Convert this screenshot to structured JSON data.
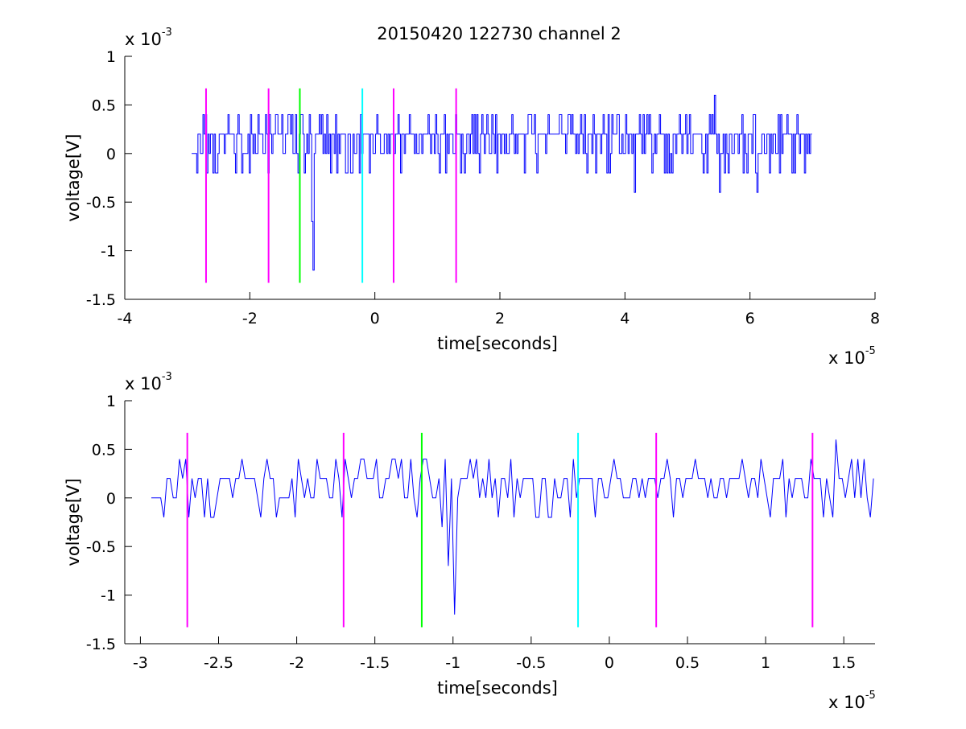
{
  "figure": {
    "title": "20150420 122730 channel 2"
  },
  "chart_data": [
    {
      "type": "line",
      "title": "20150420 122730 channel 2",
      "xlabel": "time[seconds]",
      "ylabel": "voltage[V]",
      "x_exponent": {
        "base": "x 10",
        "power": "-5"
      },
      "y_exponent": {
        "base": "x 10",
        "power": "-3"
      },
      "xlim": [
        -4,
        8
      ],
      "ylim": [
        -1.5,
        1
      ],
      "xticks": [
        -4,
        -2,
        0,
        2,
        4,
        6,
        8
      ],
      "xtick_labels": [
        "-4",
        "-2",
        "0",
        "2",
        "4",
        "6",
        "8"
      ],
      "yticks": [
        -1.5,
        -1,
        -0.5,
        0,
        0.5,
        1
      ],
      "ytick_labels": [
        "-1.5",
        "-1",
        "-0.5",
        "0",
        "0.5",
        "1"
      ],
      "grid": false,
      "signal": {
        "color": "#0000ff",
        "x_range": [
          -2.93,
          7.0
        ],
        "levels": [
          -0.2,
          0,
          0.2,
          0.4
        ],
        "dips": [
          [
            -0.98,
            -1.2
          ],
          [
            -1.0,
            -0.7
          ],
          [
            -1.12,
            -0.2
          ],
          [
            4.15,
            -0.4
          ],
          [
            5.5,
            -0.4
          ],
          [
            6.1,
            -0.4
          ]
        ],
        "peaks": [
          [
            5.42,
            0.6
          ]
        ]
      },
      "markers": [
        {
          "x": -2.7,
          "color": "#ff00ff"
        },
        {
          "x": -1.7,
          "color": "#ff00ff"
        },
        {
          "x": -1.2,
          "color": "#00ff00"
        },
        {
          "x": -0.2,
          "color": "#00ffff"
        },
        {
          "x": 0.3,
          "color": "#ff00ff"
        },
        {
          "x": 1.3,
          "color": "#ff00ff"
        }
      ],
      "marker_range": [
        -1.33,
        0.67
      ]
    },
    {
      "type": "line",
      "xlabel": "time[seconds]",
      "ylabel": "voltage[V]",
      "x_exponent": {
        "base": "x 10",
        "power": "-5"
      },
      "y_exponent": {
        "base": "x 10",
        "power": "-3"
      },
      "xlim": [
        -3.1,
        1.7
      ],
      "ylim": [
        -1.5,
        1
      ],
      "xticks": [
        -3,
        -2.5,
        -2,
        -1.5,
        -1,
        -0.5,
        0,
        0.5,
        1,
        1.5
      ],
      "xtick_labels": [
        "-3",
        "-2.5",
        "-2",
        "-1.5",
        "-1",
        "-0.5",
        "0",
        "0.5",
        "1",
        "1.5"
      ],
      "yticks": [
        -1.5,
        -1,
        -0.5,
        0,
        0.5,
        1
      ],
      "ytick_labels": [
        "-1.5",
        "-1",
        "-0.5",
        "0",
        "0.5",
        "1"
      ],
      "grid": false,
      "signal": {
        "color": "#0000ff",
        "x_range": [
          -2.93,
          1.7
        ],
        "levels": [
          -0.2,
          0,
          0.2,
          0.4
        ],
        "dips": [
          [
            -0.98,
            -1.2
          ],
          [
            -1.02,
            -0.7
          ],
          [
            -1.06,
            -0.3
          ]
        ],
        "peaks": [
          [
            1.45,
            0.6
          ]
        ]
      },
      "markers": [
        {
          "x": -2.7,
          "color": "#ff00ff"
        },
        {
          "x": -1.7,
          "color": "#ff00ff"
        },
        {
          "x": -1.2,
          "color": "#00ff00"
        },
        {
          "x": -0.2,
          "color": "#00ffff"
        },
        {
          "x": 0.3,
          "color": "#ff00ff"
        },
        {
          "x": 1.3,
          "color": "#ff00ff"
        }
      ],
      "marker_range": [
        -1.33,
        0.67
      ]
    }
  ]
}
